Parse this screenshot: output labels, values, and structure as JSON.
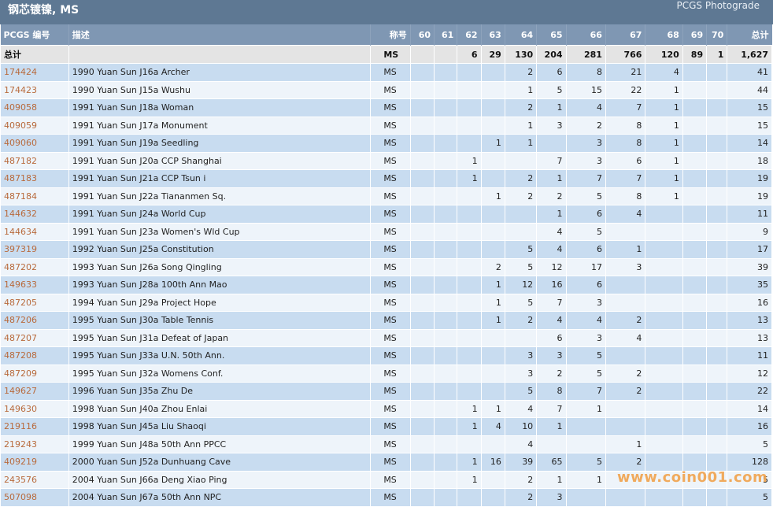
{
  "header": {
    "title": "钢芯镀镍, MS",
    "brand": "PCGS Photograde"
  },
  "columns": [
    "PCGS 编号",
    "描述",
    "称号",
    "60",
    "61",
    "62",
    "63",
    "64",
    "65",
    "66",
    "67",
    "68",
    "69",
    "70",
    "总计"
  ],
  "total_row": {
    "label": "总计",
    "designation": "MS",
    "counts": [
      "",
      "",
      "6",
      "29",
      "130",
      "204",
      "281",
      "766",
      "120",
      "89",
      "1"
    ],
    "total": "1,627"
  },
  "rows": [
    {
      "pcgs": "174424",
      "desc": "1990 Yuan Sun J16a Archer",
      "des": "MS",
      "counts": [
        "",
        "",
        "",
        "",
        "2",
        "6",
        "8",
        "21",
        "4",
        "",
        ""
      ],
      "total": "41"
    },
    {
      "pcgs": "174423",
      "desc": "1990 Yuan Sun J15a Wushu",
      "des": "MS",
      "counts": [
        "",
        "",
        "",
        "",
        "1",
        "5",
        "15",
        "22",
        "1",
        "",
        ""
      ],
      "total": "44"
    },
    {
      "pcgs": "409058",
      "desc": "1991 Yuan Sun J18a Woman",
      "des": "MS",
      "counts": [
        "",
        "",
        "",
        "",
        "2",
        "1",
        "4",
        "7",
        "1",
        "",
        ""
      ],
      "total": "15"
    },
    {
      "pcgs": "409059",
      "desc": "1991 Yuan Sun J17a Monument",
      "des": "MS",
      "counts": [
        "",
        "",
        "",
        "",
        "1",
        "3",
        "2",
        "8",
        "1",
        "",
        ""
      ],
      "total": "15"
    },
    {
      "pcgs": "409060",
      "desc": "1991 Yuan Sun J19a Seedling",
      "des": "MS",
      "counts": [
        "",
        "",
        "",
        "1",
        "1",
        "",
        "3",
        "8",
        "1",
        "",
        ""
      ],
      "total": "14"
    },
    {
      "pcgs": "487182",
      "desc": "1991 Yuan Sun J20a CCP Shanghai",
      "des": "MS",
      "counts": [
        "",
        "",
        "1",
        "",
        "",
        "7",
        "3",
        "6",
        "1",
        "",
        ""
      ],
      "total": "18"
    },
    {
      "pcgs": "487183",
      "desc": "1991 Yuan Sun J21a CCP Tsun i",
      "des": "MS",
      "counts": [
        "",
        "",
        "1",
        "",
        "2",
        "1",
        "7",
        "7",
        "1",
        "",
        ""
      ],
      "total": "19"
    },
    {
      "pcgs": "487184",
      "desc": "1991 Yuan Sun J22a Tiananmen Sq.",
      "des": "MS",
      "counts": [
        "",
        "",
        "",
        "1",
        "2",
        "2",
        "5",
        "8",
        "1",
        "",
        ""
      ],
      "total": "19"
    },
    {
      "pcgs": "144632",
      "desc": "1991 Yuan Sun J24a World Cup",
      "des": "MS",
      "counts": [
        "",
        "",
        "",
        "",
        "",
        "1",
        "6",
        "4",
        "",
        "",
        ""
      ],
      "total": "11"
    },
    {
      "pcgs": "144634",
      "desc": "1991 Yuan Sun J23a Women's Wld Cup",
      "des": "MS",
      "counts": [
        "",
        "",
        "",
        "",
        "",
        "4",
        "5",
        "",
        "",
        "",
        ""
      ],
      "total": "9"
    },
    {
      "pcgs": "397319",
      "desc": "1992 Yuan Sun J25a Constitution",
      "des": "MS",
      "counts": [
        "",
        "",
        "",
        "",
        "5",
        "4",
        "6",
        "1",
        "",
        "",
        ""
      ],
      "total": "17"
    },
    {
      "pcgs": "487202",
      "desc": "1993 Yuan Sun J26a Song Qingling",
      "des": "MS",
      "counts": [
        "",
        "",
        "",
        "2",
        "5",
        "12",
        "17",
        "3",
        "",
        "",
        ""
      ],
      "total": "39"
    },
    {
      "pcgs": "149633",
      "desc": "1993 Yuan Sun J28a 100th Ann Mao",
      "des": "MS",
      "counts": [
        "",
        "",
        "",
        "1",
        "12",
        "16",
        "6",
        "",
        "",
        "",
        ""
      ],
      "total": "35"
    },
    {
      "pcgs": "487205",
      "desc": "1994 Yuan Sun J29a Project Hope",
      "des": "MS",
      "counts": [
        "",
        "",
        "",
        "1",
        "5",
        "7",
        "3",
        "",
        "",
        "",
        ""
      ],
      "total": "16"
    },
    {
      "pcgs": "487206",
      "desc": "1995 Yuan Sun J30a Table Tennis",
      "des": "MS",
      "counts": [
        "",
        "",
        "",
        "1",
        "2",
        "4",
        "4",
        "2",
        "",
        "",
        ""
      ],
      "total": "13"
    },
    {
      "pcgs": "487207",
      "desc": "1995 Yuan Sun J31a Defeat of Japan",
      "des": "MS",
      "counts": [
        "",
        "",
        "",
        "",
        "",
        "6",
        "3",
        "4",
        "",
        "",
        ""
      ],
      "total": "13"
    },
    {
      "pcgs": "487208",
      "desc": "1995 Yuan Sun J33a U.N. 50th Ann.",
      "des": "MS",
      "counts": [
        "",
        "",
        "",
        "",
        "3",
        "3",
        "5",
        "",
        "",
        "",
        ""
      ],
      "total": "11"
    },
    {
      "pcgs": "487209",
      "desc": "1995 Yuan Sun J32a Womens Conf.",
      "des": "MS",
      "counts": [
        "",
        "",
        "",
        "",
        "3",
        "2",
        "5",
        "2",
        "",
        "",
        ""
      ],
      "total": "12"
    },
    {
      "pcgs": "149627",
      "desc": "1996 Yuan Sun J35a Zhu De",
      "des": "MS",
      "counts": [
        "",
        "",
        "",
        "",
        "5",
        "8",
        "7",
        "2",
        "",
        "",
        ""
      ],
      "total": "22"
    },
    {
      "pcgs": "149630",
      "desc": "1998 Yuan Sun J40a Zhou Enlai",
      "des": "MS",
      "counts": [
        "",
        "",
        "1",
        "1",
        "4",
        "7",
        "1",
        "",
        "",
        "",
        ""
      ],
      "total": "14"
    },
    {
      "pcgs": "219116",
      "desc": "1998 Yuan Sun J45a Liu Shaoqi",
      "des": "MS",
      "counts": [
        "",
        "",
        "1",
        "4",
        "10",
        "1",
        "",
        "",
        "",
        "",
        ""
      ],
      "total": "16"
    },
    {
      "pcgs": "219243",
      "desc": "1999 Yuan Sun J48a 50th Ann PPCC",
      "des": "MS",
      "counts": [
        "",
        "",
        "",
        "",
        "4",
        "",
        "",
        "1",
        "",
        "",
        ""
      ],
      "total": "5"
    },
    {
      "pcgs": "409219",
      "desc": "2000 Yuan Sun J52a Dunhuang Cave",
      "des": "MS",
      "counts": [
        "",
        "",
        "1",
        "16",
        "39",
        "65",
        "5",
        "2",
        "",
        "",
        ""
      ],
      "total": "128"
    },
    {
      "pcgs": "243576",
      "desc": "2004 Yuan Sun J66a Deng Xiao Ping",
      "des": "MS",
      "counts": [
        "",
        "",
        "1",
        "",
        "2",
        "1",
        "1",
        "",
        "",
        "",
        ""
      ],
      "total": "5"
    },
    {
      "pcgs": "507098",
      "desc": "2004 Yuan Sun J67a 50th Ann NPC",
      "des": "MS",
      "counts": [
        "",
        "",
        "",
        "",
        "2",
        "3",
        "",
        "",
        "",
        "",
        ""
      ],
      "total": "5"
    }
  ],
  "watermark": "www.coin001.com"
}
